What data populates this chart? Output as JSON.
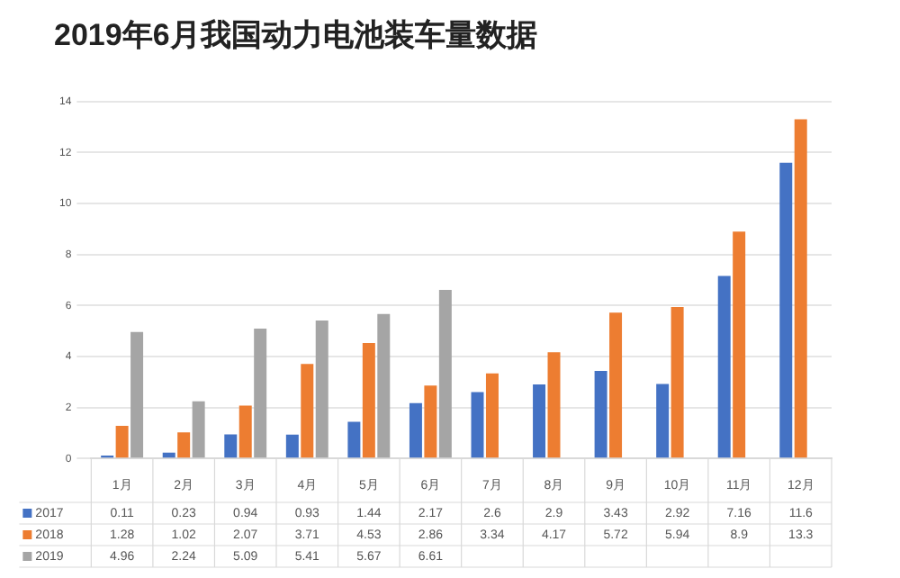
{
  "chart_data": {
    "type": "bar",
    "title": "2019年6月我国动力电池装车量数据",
    "categories": [
      "1月",
      "2月",
      "3月",
      "4月",
      "5月",
      "6月",
      "7月",
      "8月",
      "9月",
      "10月",
      "11月",
      "12月"
    ],
    "series": [
      {
        "name": "2017",
        "color": "#4472c4",
        "values": [
          0.11,
          0.23,
          0.94,
          0.93,
          1.44,
          2.17,
          2.6,
          2.9,
          3.43,
          2.92,
          7.16,
          11.6
        ]
      },
      {
        "name": "2018",
        "color": "#ed7d31",
        "values": [
          1.28,
          1.02,
          2.07,
          3.71,
          4.53,
          2.86,
          3.34,
          4.17,
          5.72,
          5.94,
          8.9,
          13.3
        ]
      },
      {
        "name": "2019",
        "color": "#a5a5a5",
        "values": [
          4.96,
          2.24,
          5.09,
          5.41,
          5.67,
          6.61,
          null,
          null,
          null,
          null,
          null,
          null
        ]
      }
    ],
    "ylim": [
      0,
      14
    ],
    "yticks": [
      0,
      2,
      4,
      6,
      8,
      10,
      12,
      14
    ],
    "grid": "y",
    "data_labels": true,
    "legend": "bottom"
  }
}
